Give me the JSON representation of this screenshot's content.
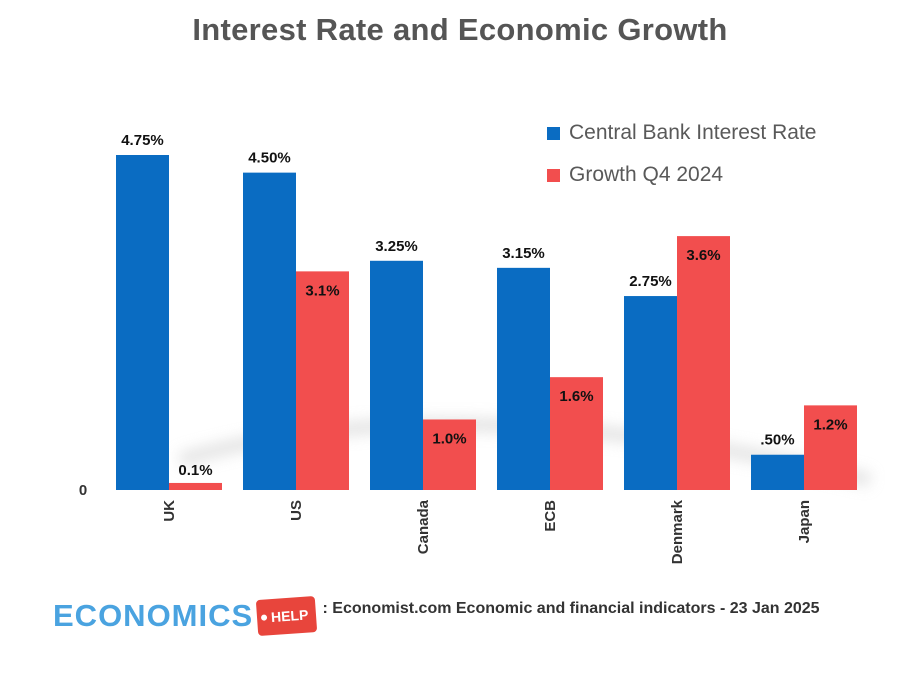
{
  "chart_data": {
    "type": "bar",
    "title": "Interest Rate and Economic Growth",
    "categories": [
      "UK",
      "US",
      "Canada",
      "ECB",
      "Denmark",
      "Japan"
    ],
    "series": [
      {
        "name": "Central Bank Interest Rate",
        "color": "#0a6cc2",
        "values": [
          4.75,
          4.5,
          3.25,
          3.15,
          2.75,
          0.5
        ],
        "labels": [
          "4.75%",
          "4.50%",
          "3.25%",
          "3.15%",
          "2.75%",
          ".50%"
        ]
      },
      {
        "name": "Growth Q4 2024",
        "color": "#f24e4e",
        "values": [
          0.1,
          3.1,
          1.0,
          1.6,
          3.6,
          1.2
        ],
        "labels": [
          "0.1%",
          "3.1%",
          "1.0%",
          "1.6%",
          "3.6%",
          "1.2%"
        ]
      }
    ],
    "y_zero_label": "0",
    "ylim": [
      0,
      4.75
    ],
    "grid": false,
    "legend_position": "top-right"
  },
  "footer": {
    "brand_name": "ECONOMICS",
    "brand_tag": "HELP",
    "source": ": Economist.com Economic and financial indicators - 23 Jan 2025"
  }
}
